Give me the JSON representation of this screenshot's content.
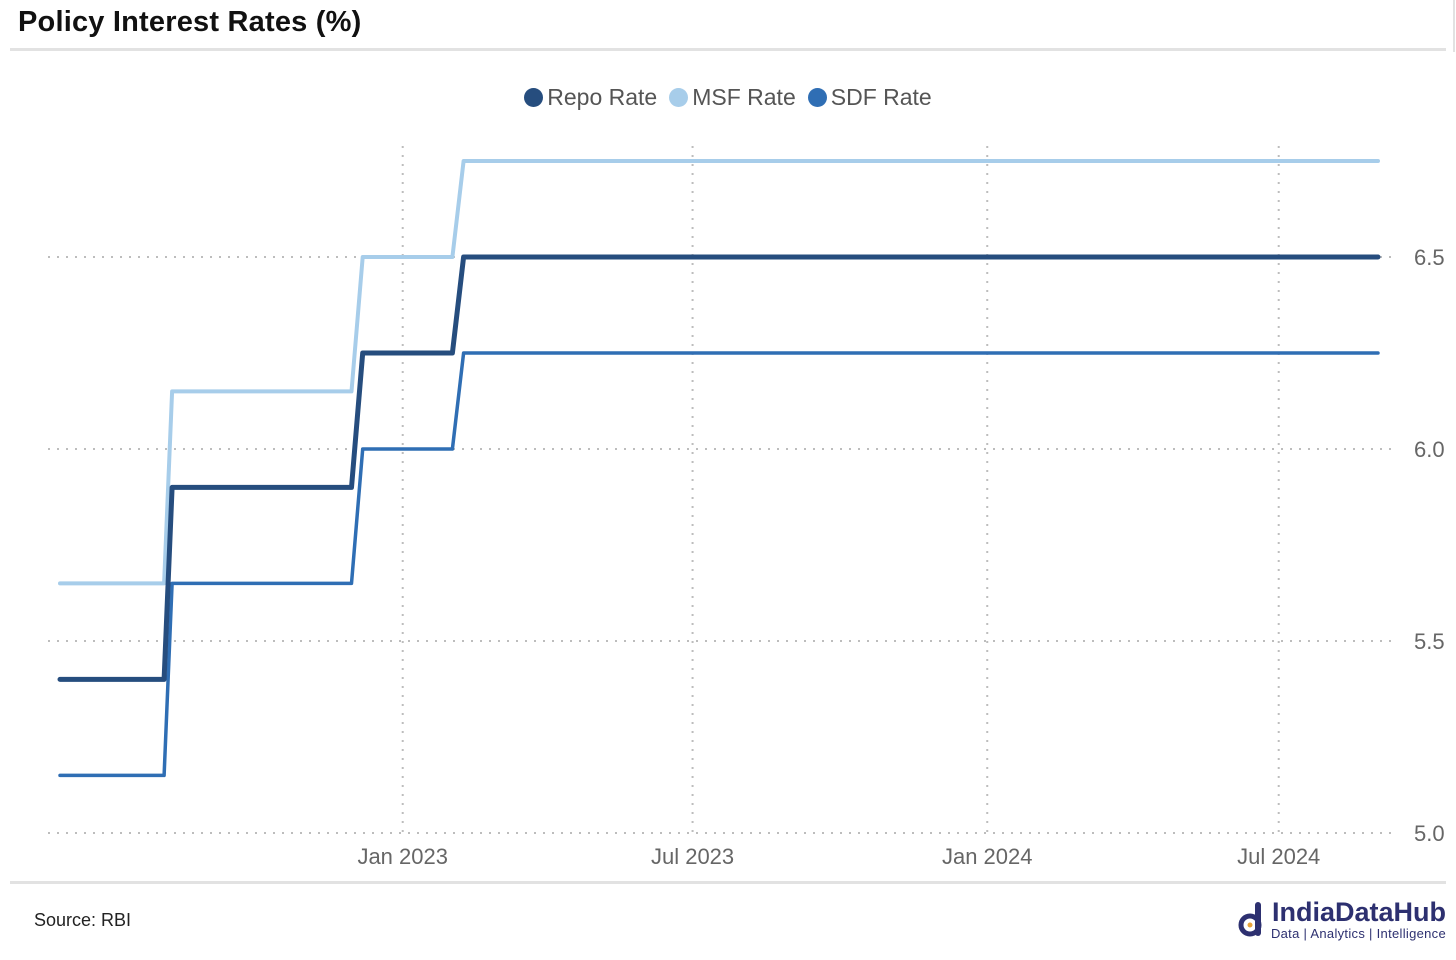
{
  "header": {
    "title": "Policy Interest Rates (%)"
  },
  "footer": {
    "source": "Source: RBI",
    "brand_name": "IndiaDataHub",
    "brand_tagline": "Data | Analytics | Intelligence"
  },
  "chart_data": {
    "type": "line",
    "step": true,
    "title": "Policy Interest Rates (%)",
    "xlabel": "",
    "ylabel": "",
    "x_ticks": [
      "Jan 2023",
      "Jul 2023",
      "Jan 2024",
      "Jul 2024"
    ],
    "xlim": [
      "2022-06-01",
      "2024-09-01"
    ],
    "y_ticks": [
      5.0,
      5.5,
      6.0,
      6.5
    ],
    "ylim": [
      5.0,
      6.8
    ],
    "y_axis_side": "right",
    "grid": true,
    "legend_position": "top-center",
    "series": [
      {
        "name": "Repo Rate",
        "color": "#264d7e",
        "points": [
          [
            "2022-06-01",
            5.4
          ],
          [
            "2022-08-05",
            5.4
          ],
          [
            "2022-08-10",
            5.9
          ],
          [
            "2022-11-30",
            5.9
          ],
          [
            "2022-12-07",
            6.25
          ],
          [
            "2023-02-01",
            6.25
          ],
          [
            "2023-02-08",
            6.5
          ],
          [
            "2024-09-01",
            6.5
          ]
        ]
      },
      {
        "name": "MSF Rate",
        "color": "#a7cdea",
        "points": [
          [
            "2022-06-01",
            5.65
          ],
          [
            "2022-08-05",
            5.65
          ],
          [
            "2022-08-10",
            6.15
          ],
          [
            "2022-11-30",
            6.15
          ],
          [
            "2022-12-07",
            6.5
          ],
          [
            "2023-02-01",
            6.5
          ],
          [
            "2023-02-08",
            6.75
          ],
          [
            "2024-09-01",
            6.75
          ]
        ]
      },
      {
        "name": "SDF Rate",
        "color": "#2f6eb4",
        "points": [
          [
            "2022-06-01",
            5.15
          ],
          [
            "2022-08-05",
            5.15
          ],
          [
            "2022-08-10",
            5.65
          ],
          [
            "2022-11-30",
            5.65
          ],
          [
            "2022-12-07",
            6.0
          ],
          [
            "2023-02-01",
            6.0
          ],
          [
            "2023-02-08",
            6.25
          ],
          [
            "2024-09-01",
            6.25
          ]
        ]
      }
    ]
  }
}
